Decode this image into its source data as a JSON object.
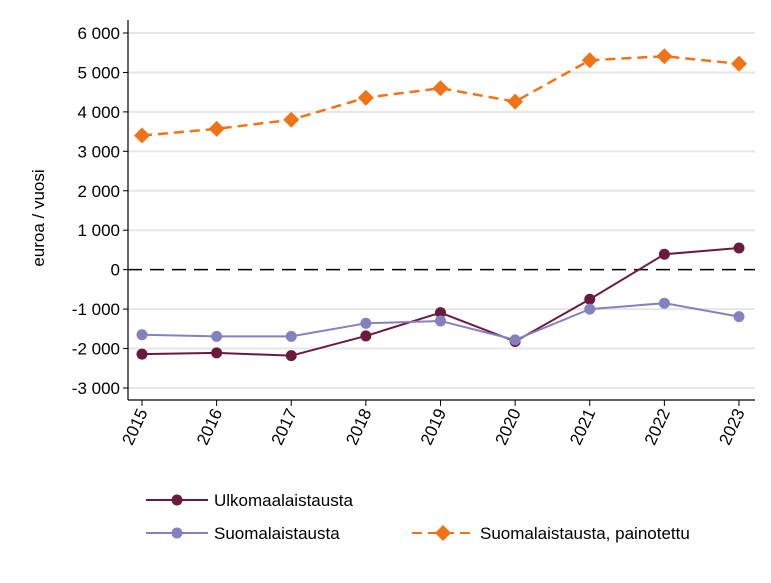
{
  "chart_data": {
    "type": "line",
    "title": "",
    "xlabel": "",
    "ylabel": "euroa / vuosi",
    "ylim": [
      -3000,
      6000
    ],
    "yticks": [
      6000,
      5000,
      4000,
      3000,
      2000,
      1000,
      0,
      -1000,
      -2000,
      -3000
    ],
    "ytick_labels": [
      "6 000",
      "5 000",
      "4 000",
      "3 000",
      "2 000",
      "1 000",
      "0",
      "-1 000",
      "-2 000",
      "-3 000"
    ],
    "grid": true,
    "reference_line": 0,
    "legend_position": "bottom",
    "x": [
      "2015",
      "2016",
      "2017",
      "2018",
      "2019",
      "2020",
      "2021",
      "2022",
      "2023"
    ],
    "series": [
      {
        "name": "Ulkomaalaistausta",
        "color": "#6b1a3f",
        "style": "solid",
        "marker": "circle",
        "values": [
          -2140,
          -2110,
          -2180,
          -1680,
          -1090,
          -1820,
          -750,
          390,
          550
        ]
      },
      {
        "name": "Suomalaistausta",
        "color": "#8481c0",
        "style": "solid",
        "marker": "circle",
        "values": [
          -1650,
          -1690,
          -1690,
          -1360,
          -1300,
          -1780,
          -1000,
          -850,
          -1190
        ]
      },
      {
        "name": "Suomalaistausta, painotettu",
        "color": "#f07318",
        "style": "dashed",
        "marker": "diamond",
        "values": [
          3400,
          3570,
          3800,
          4360,
          4600,
          4260,
          5310,
          5410,
          5220
        ]
      }
    ]
  }
}
